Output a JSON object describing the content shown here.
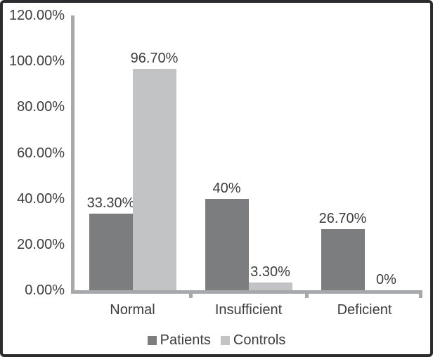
{
  "chart_data": {
    "type": "bar",
    "title": "",
    "xlabel": "",
    "ylabel": "",
    "categories": [
      "Normal",
      "Insufficient",
      "Deficient"
    ],
    "series": [
      {
        "name": "Patients",
        "values": [
          33.3,
          40,
          26.7
        ],
        "data_labels": [
          "33.30%",
          "40%",
          "26.70%"
        ],
        "color": "#7b7d7f"
      },
      {
        "name": "Controls",
        "values": [
          96.7,
          3.3,
          0
        ],
        "data_labels": [
          "96.70%",
          "3.30%",
          "0%"
        ],
        "color": "#c1c3c5"
      }
    ],
    "y_axis": {
      "tick_values": [
        0,
        20,
        40,
        60,
        80,
        100,
        120
      ],
      "tick_labels": [
        "0.00%",
        "20.00%",
        "40.00%",
        "60.00%",
        "80.00%",
        "100.00%",
        "120.00%"
      ]
    },
    "ylim": [
      0,
      120
    ],
    "grid": false,
    "legend_position": "bottom"
  },
  "colors": {
    "axis_line": "#a6a8ab",
    "text": "#3d3d3d",
    "frame_border": "#2c2c2e",
    "background": "#ffffff"
  }
}
